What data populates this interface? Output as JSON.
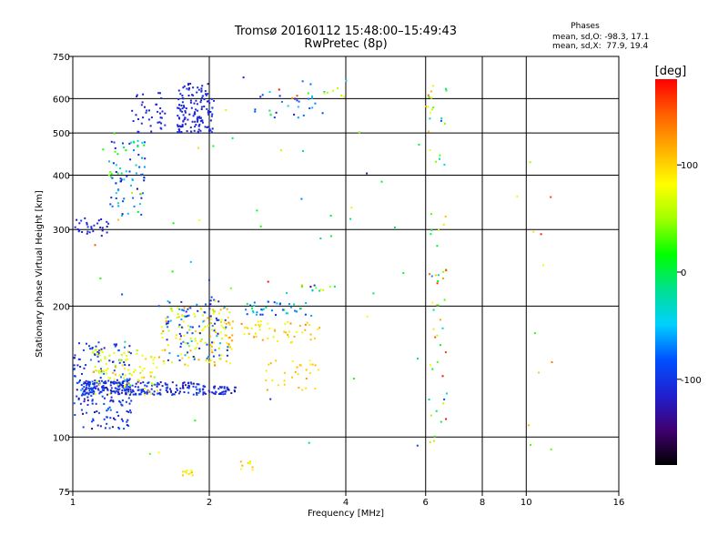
{
  "chart_data": {
    "type": "scatter",
    "title": "Tromsø 20160112 15:48:00–15:49:43",
    "subtitle": "RwPretec (8p)",
    "xlabel": "Frequency [MHz]",
    "ylabel": "Stationary phase Virtual Height [km]",
    "x_scale": "log",
    "y_scale": "log",
    "xlim": [
      1,
      16
    ],
    "ylim": [
      75,
      750
    ],
    "x_ticks": [
      {
        "value": 1,
        "label": "1"
      },
      {
        "value": 2,
        "label": "2"
      },
      {
        "value": 4,
        "label": "4"
      },
      {
        "value": 6,
        "label": "6"
      },
      {
        "value": 8,
        "label": "8"
      },
      {
        "value": 10,
        "label": "10"
      },
      {
        "value": 16,
        "label": "16"
      }
    ],
    "y_ticks": [
      {
        "value": 75,
        "label": "75"
      },
      {
        "value": 100,
        "label": "100"
      },
      {
        "value": 200,
        "label": "200"
      },
      {
        "value": 300,
        "label": "300"
      },
      {
        "value": 400,
        "label": "400"
      },
      {
        "value": 500,
        "label": "500"
      },
      {
        "value": 600,
        "label": "600"
      },
      {
        "value": 750,
        "label": "750"
      }
    ],
    "grid_x": [
      2,
      4,
      6,
      8,
      10
    ],
    "grid_y": [
      100,
      200,
      300,
      400,
      500,
      600
    ],
    "phase_box": {
      "heading": "Phases",
      "line1": "mean, sd,O: -98.3, 17.1",
      "line2": "mean, sd,X:  77.9, 19.4"
    },
    "colorbar": {
      "label": "[deg]",
      "range": [
        -180,
        180
      ],
      "ticks": [
        {
          "value": 100,
          "label": "100"
        },
        {
          "value": 0,
          "label": "0"
        },
        {
          "value": -100,
          "label": "-100"
        }
      ],
      "stops": [
        "#000000",
        "#400070",
        "#2020d0",
        "#0050ff",
        "#00d0ff",
        "#00e090",
        "#00ff00",
        "#a0ff00",
        "#ffff00",
        "#ffb000",
        "#ff6000",
        "#ff0000"
      ]
    },
    "clusters": [
      {
        "f": [
          1.0,
          1.35
        ],
        "h": [
          104,
          165
        ],
        "n": 180,
        "phase": -100,
        "sd": 25
      },
      {
        "f": [
          1.05,
          1.32
        ],
        "h": [
          125,
          135
        ],
        "n": 120,
        "phase": -105,
        "sd": 15
      },
      {
        "f": [
          1.3,
          1.9
        ],
        "h": [
          125,
          134
        ],
        "n": 120,
        "phase": -105,
        "sd": 18
      },
      {
        "f": [
          1.9,
          2.3
        ],
        "h": [
          125,
          131
        ],
        "n": 50,
        "phase": -110,
        "sd": 12
      },
      {
        "f": [
          1.1,
          1.55
        ],
        "h": [
          125,
          160
        ],
        "n": 90,
        "phase": 80,
        "sd": 25
      },
      {
        "f": [
          1.55,
          2.25
        ],
        "h": [
          145,
          200
        ],
        "n": 120,
        "phase": 90,
        "sd": 30
      },
      {
        "f": [
          1.6,
          2.2
        ],
        "h": [
          150,
          210
        ],
        "n": 80,
        "phase": -90,
        "sd": 30
      },
      {
        "f": [
          2.0,
          3.5
        ],
        "h": [
          165,
          185
        ],
        "n": 60,
        "phase": 100,
        "sd": 25
      },
      {
        "f": [
          2.4,
          3.3
        ],
        "h": [
          190,
          205
        ],
        "n": 40,
        "phase": -60,
        "sd": 40
      },
      {
        "f": [
          2.6,
          3.5
        ],
        "h": [
          128,
          150
        ],
        "n": 30,
        "phase": 100,
        "sd": 15
      },
      {
        "f": [
          1.0,
          1.2
        ],
        "h": [
          290,
          320
        ],
        "n": 30,
        "phase": -110,
        "sd": 10
      },
      {
        "f": [
          1.2,
          1.45
        ],
        "h": [
          320,
          480
        ],
        "n": 80,
        "phase": -60,
        "sd": 80
      },
      {
        "f": [
          1.35,
          1.6
        ],
        "h": [
          500,
          620
        ],
        "n": 40,
        "phase": -110,
        "sd": 10
      },
      {
        "f": [
          1.7,
          2.05
        ],
        "h": [
          500,
          650
        ],
        "n": 140,
        "phase": -110,
        "sd": 8
      },
      {
        "f": [
          2.5,
          3.6
        ],
        "h": [
          540,
          630
        ],
        "n": 25,
        "phase": -80,
        "sd": 40
      },
      {
        "f": [
          3.0,
          4.2
        ],
        "h": [
          600,
          660
        ],
        "n": 14,
        "phase": 20,
        "sd": 90
      },
      {
        "f": [
          3.2,
          3.8
        ],
        "h": [
          215,
          225
        ],
        "n": 12,
        "phase": 0,
        "sd": 90
      },
      {
        "f": [
          1.75,
          1.85
        ],
        "h": [
          81,
          85
        ],
        "n": 10,
        "phase": 100,
        "sd": 20
      },
      {
        "f": [
          2.3,
          2.5
        ],
        "h": [
          83,
          88
        ],
        "n": 10,
        "phase": 100,
        "sd": 20
      },
      {
        "f": [
          6.1,
          6.7
        ],
        "h": [
          95,
          660
        ],
        "n": 60,
        "phase": 60,
        "sd": 90
      },
      {
        "f": [
          6.0,
          6.2
        ],
        "h": [
          500,
          620
        ],
        "n": 6,
        "phase": 100,
        "sd": 30
      },
      {
        "f": [
          9.5,
          12.0
        ],
        "h": [
          80,
          510
        ],
        "n": 12,
        "phase": 80,
        "sd": 60
      },
      {
        "f": [
          1.0,
          6.0
        ],
        "h": [
          75,
          700
        ],
        "n": 60,
        "phase": 0,
        "sd": 100
      }
    ]
  }
}
